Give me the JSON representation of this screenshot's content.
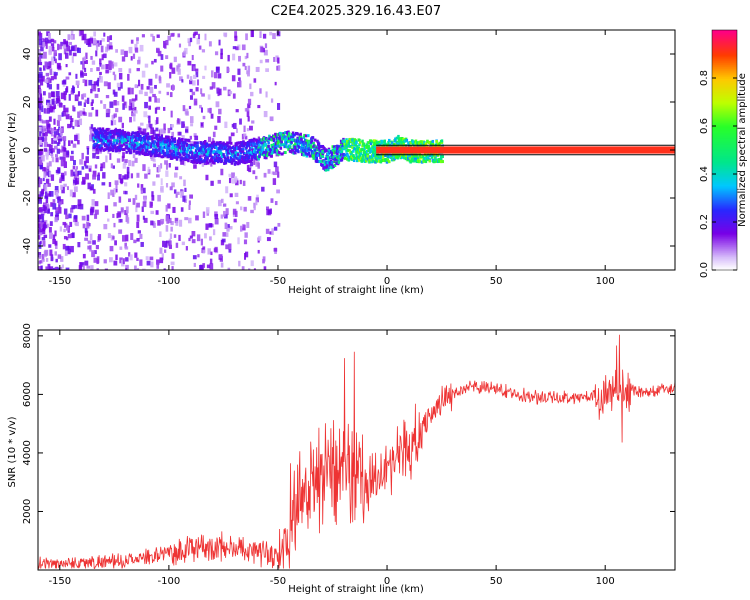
{
  "title": "C2E4.2025.329.16.43.E07",
  "chart_data": [
    {
      "type": "heatmap",
      "name": "spectrogram",
      "xlabel": "Height of straight line (km)",
      "ylabel": "Frequency (Hz)",
      "xlim": [
        -160,
        132
      ],
      "ylim": [
        -50,
        50
      ],
      "xticks": [
        -150,
        -100,
        -50,
        0,
        50,
        100
      ],
      "yticks": [
        -40,
        -20,
        0,
        20,
        40
      ],
      "colorbar": {
        "label": "Normalized spectral amplitude",
        "range": [
          0,
          1
        ],
        "ticks": [
          0.0,
          0.2,
          0.4,
          0.6,
          0.8
        ],
        "tick_labels": [
          "0.0",
          "0.2",
          "0.4",
          "0.6",
          "0.8"
        ]
      },
      "ridge": {
        "description_points_x": [
          -130,
          -110,
          -90,
          -70,
          -55,
          -45,
          -35,
          -28,
          -20,
          -10,
          0,
          5,
          10,
          20,
          130
        ],
        "description_points_y": [
          5,
          3,
          0,
          -1,
          2,
          4,
          2,
          -4,
          1,
          0,
          0,
          2,
          0,
          0,
          0
        ]
      },
      "line_band": {
        "ymin": -1.5,
        "ymax": 1.5,
        "xmin": -5,
        "xmax": 132
      }
    },
    {
      "type": "line",
      "name": "snr",
      "xlabel": "Height of straight line (km)",
      "ylabel": "SNR (10 * v/v)",
      "xlim": [
        -160,
        132
      ],
      "ylim": [
        0,
        8200
      ],
      "xticks": [
        -150,
        -100,
        -50,
        0,
        50,
        100
      ],
      "yticks": [
        2000,
        4000,
        6000,
        8000
      ],
      "color": "#ee3333",
      "profile": {
        "x": [
          -160,
          -120,
          -100,
          -80,
          -60,
          -50,
          -45,
          -40,
          -35,
          -30,
          -25,
          -20,
          -15,
          -10,
          -5,
          0,
          5,
          10,
          15,
          20,
          25,
          30,
          40,
          50,
          60,
          70,
          80,
          90,
          100,
          105,
          110,
          115,
          120,
          132
        ],
        "y": [
          200,
          300,
          600,
          800,
          700,
          500,
          1200,
          2500,
          3000,
          3400,
          3500,
          3600,
          3000,
          3000,
          3300,
          3700,
          3800,
          4200,
          4600,
          5300,
          5800,
          6050,
          6250,
          6200,
          6000,
          5900,
          5900,
          5900,
          6000,
          6100,
          6200,
          6100,
          6100,
          6200
        ]
      }
    }
  ]
}
